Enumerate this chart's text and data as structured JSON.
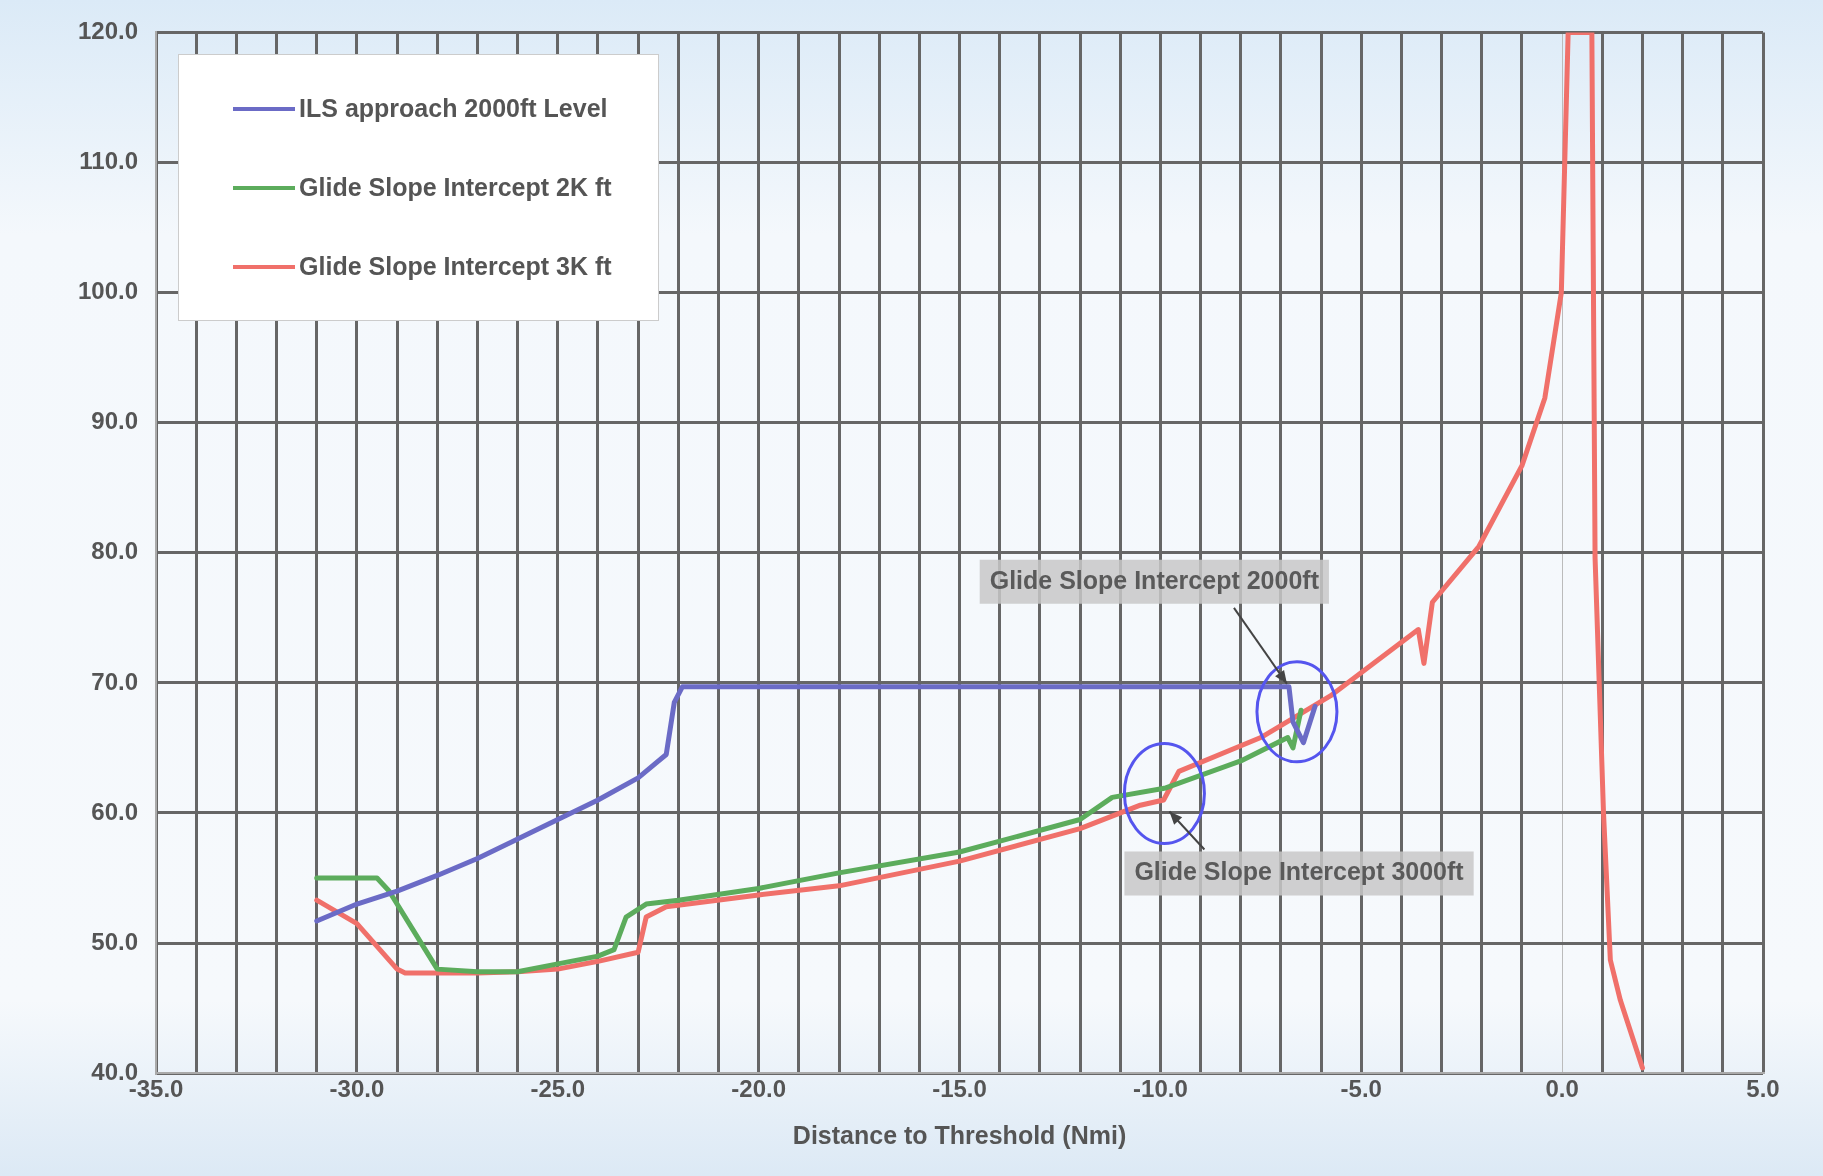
{
  "chart_data": {
    "type": "line",
    "xlabel": "Distance to Threshold (Nmi)",
    "xlim": [
      -35,
      5
    ],
    "xticks": [
      {
        "value": -35,
        "label": "-35.0"
      },
      {
        "value": -34,
        "label": null
      },
      {
        "value": -33,
        "label": null
      },
      {
        "value": -32,
        "label": null
      },
      {
        "value": -31,
        "label": null
      },
      {
        "value": -30,
        "label": "-30.0"
      },
      {
        "value": -29,
        "label": null
      },
      {
        "value": -28,
        "label": null
      },
      {
        "value": -27,
        "label": null
      },
      {
        "value": -26,
        "label": null
      },
      {
        "value": -25,
        "label": "-25.0"
      },
      {
        "value": -24,
        "label": null
      },
      {
        "value": -23,
        "label": null
      },
      {
        "value": -22,
        "label": null
      },
      {
        "value": -21,
        "label": null
      },
      {
        "value": -20,
        "label": "-20.0"
      },
      {
        "value": -19,
        "label": null
      },
      {
        "value": -18,
        "label": null
      },
      {
        "value": -17,
        "label": null
      },
      {
        "value": -16,
        "label": null
      },
      {
        "value": -15,
        "label": "-15.0"
      },
      {
        "value": -14,
        "label": null
      },
      {
        "value": -13,
        "label": null
      },
      {
        "value": -12,
        "label": null
      },
      {
        "value": -11,
        "label": null
      },
      {
        "value": -10,
        "label": "-10.0"
      },
      {
        "value": -9,
        "label": null
      },
      {
        "value": -8,
        "label": null
      },
      {
        "value": -7,
        "label": null
      },
      {
        "value": -6,
        "label": null
      },
      {
        "value": -5,
        "label": "-5.0"
      },
      {
        "value": -4,
        "label": null
      },
      {
        "value": -3,
        "label": null
      },
      {
        "value": -2,
        "label": null
      },
      {
        "value": -1,
        "label": null
      },
      {
        "value": 0,
        "label": "0.0"
      },
      {
        "value": 1,
        "label": null
      },
      {
        "value": 2,
        "label": null
      },
      {
        "value": 3,
        "label": null
      },
      {
        "value": 4,
        "label": null
      },
      {
        "value": 5,
        "label": "5.0"
      }
    ],
    "ylim": [
      40,
      120
    ],
    "yticks": [
      {
        "value": 40,
        "label": "40.0"
      },
      {
        "value": 50,
        "label": "50.0"
      },
      {
        "value": 60,
        "label": "60.0"
      },
      {
        "value": 70,
        "label": "70.0"
      },
      {
        "value": 80,
        "label": "80.0"
      },
      {
        "value": 90,
        "label": "90.0"
      },
      {
        "value": 100,
        "label": "100.0"
      },
      {
        "value": 110,
        "label": "110.0"
      },
      {
        "value": 120,
        "label": "120.0"
      }
    ],
    "grid": true,
    "legend": "top left",
    "marker": "none",
    "line_style": "solid",
    "series": [
      {
        "name": "ILS approach 2000ft Level",
        "color": "#6b6bc6",
        "x": [
          -31,
          -30,
          -29,
          -28,
          -27,
          -26,
          -25,
          -24,
          -23,
          -22.3,
          -22.1,
          -21.9,
          -15,
          -10,
          -6.8,
          -6.7,
          -6.44,
          -6.15
        ],
        "values": [
          51.7,
          53,
          54,
          55.2,
          56.5,
          58,
          59.5,
          61,
          62.7,
          64.5,
          68.5,
          69.7,
          69.7,
          69.7,
          69.7,
          67,
          65.4,
          68.2
        ]
      },
      {
        "name": "Glide Slope Intercept 2K ft",
        "color": "#5cac5c",
        "x": [
          -31,
          -29.5,
          -29.2,
          -28.6,
          -28,
          -27,
          -26,
          -25,
          -24,
          -23.6,
          -23.3,
          -22.8,
          -22,
          -20,
          -18,
          -15,
          -12,
          -11.2,
          -9.9,
          -8,
          -6.83,
          -6.7,
          -6.5
        ],
        "values": [
          55,
          55,
          54,
          51,
          48,
          47.8,
          47.8,
          48.4,
          49,
          49.5,
          52,
          53,
          53.3,
          54.2,
          55.4,
          57,
          59.5,
          61.2,
          61.9,
          64,
          65.8,
          65,
          67.9
        ]
      },
      {
        "name": "Glide Slope Intercept 3K ft",
        "color": "#f0706a",
        "x": [
          -31,
          -30,
          -29,
          -28.8,
          -27,
          -26,
          -25,
          -24,
          -23,
          -22.8,
          -22.3,
          -20,
          -18,
          -15,
          -12,
          -10.5,
          -9.92,
          -9.54,
          -7.5,
          -5.77,
          -3.58,
          -3.44,
          -3.23,
          -2.07,
          -1,
          -0.43,
          -0.02,
          0.15,
          0.74,
          0.82,
          1.03,
          1.2,
          1.45,
          2
        ],
        "values": [
          53.3,
          51.5,
          48,
          47.7,
          47.7,
          47.8,
          48,
          48.6,
          49.3,
          52,
          52.8,
          53.7,
          54.4,
          56.3,
          58.8,
          60.6,
          61,
          63.2,
          65.8,
          69,
          74.1,
          71.5,
          76.2,
          80.5,
          86.7,
          91.9,
          100,
          120,
          120,
          79.6,
          60,
          48.7,
          45.6,
          40.4
        ]
      }
    ],
    "annotations": [
      {
        "text": "Glide Slope Intercept 2000ft",
        "x": -6.8,
        "y": 69.7
      },
      {
        "text": "Glide Slope Intercept 3000ft",
        "x": -9.9,
        "y": 61.5
      }
    ]
  }
}
